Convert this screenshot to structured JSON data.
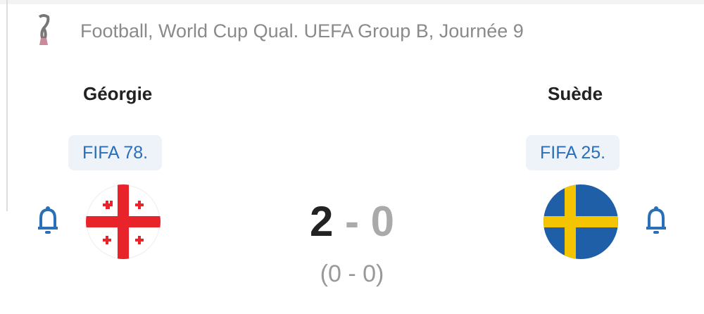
{
  "match": {
    "competition": "Football, World Cup Qual. UEFA Group B, Journée 9",
    "home": {
      "name": "Géorgie",
      "rank": "FIFA 78."
    },
    "away": {
      "name": "Suède",
      "rank": "FIFA 25."
    },
    "home_score": "2",
    "separator": "-",
    "away_score": "0",
    "halftime": "(0 - 0)"
  },
  "colors": {
    "accent": "#2a6fb8",
    "georgia_red": "#e8232a",
    "sweden_blue": "#1f5fa8",
    "sweden_yellow": "#f5c400"
  }
}
